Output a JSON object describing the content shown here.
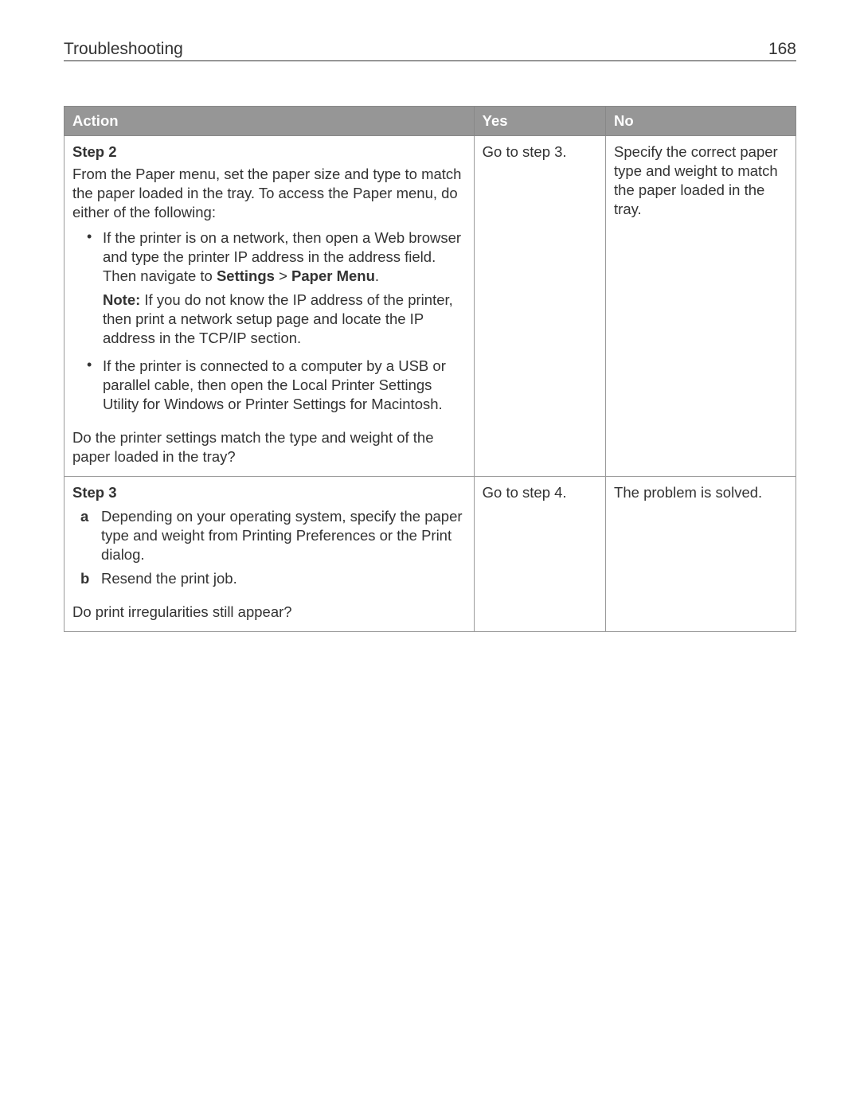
{
  "page": {
    "header_title": "Troubleshooting",
    "page_number": "168"
  },
  "table": {
    "headers": {
      "action": "Action",
      "yes": "Yes",
      "no": "No"
    },
    "rows": [
      {
        "step_title": "Step 2",
        "intro": "From the Paper menu, set the paper size and type to match the paper loaded in the tray. To access the Paper menu, do either of the following:",
        "bullets": [
          {
            "text_before": "If the printer is on a network, then open a Web browser and type the printer IP address in the address field. Then navigate to ",
            "bold1": "Settings",
            "sep": " > ",
            "bold2": "Paper Menu",
            "after": ".",
            "note_label": "Note:",
            "note_text": " If you do not know the IP address of the printer, then print a network setup page and locate the IP address in the TCP/IP section."
          },
          {
            "text": "If the printer is connected to a computer by a USB or parallel cable, then open the Local Printer Settings Utility for Windows or Printer Settings for Macintosh."
          }
        ],
        "question": "Do the printer settings match the type and weight of the paper loaded in the tray?",
        "yes": "Go to step 3.",
        "no": "Specify the correct paper type and weight to match the paper loaded in the tray."
      },
      {
        "step_title": "Step 3",
        "letters": [
          {
            "marker": "a",
            "text": "Depending on your operating system, specify the paper type and weight from Printing Preferences or the Print dialog."
          },
          {
            "marker": "b",
            "text": "Resend the print job."
          }
        ],
        "question": "Do print irregularities still appear?",
        "yes": "Go to step 4.",
        "no": "The problem is solved."
      }
    ]
  },
  "style": {
    "header_bg": "#969696",
    "header_fg": "#ffffff",
    "border_color": "#9a9a9a",
    "text_color": "#333333",
    "font_size_body": 18.5,
    "font_size_header": 21
  }
}
